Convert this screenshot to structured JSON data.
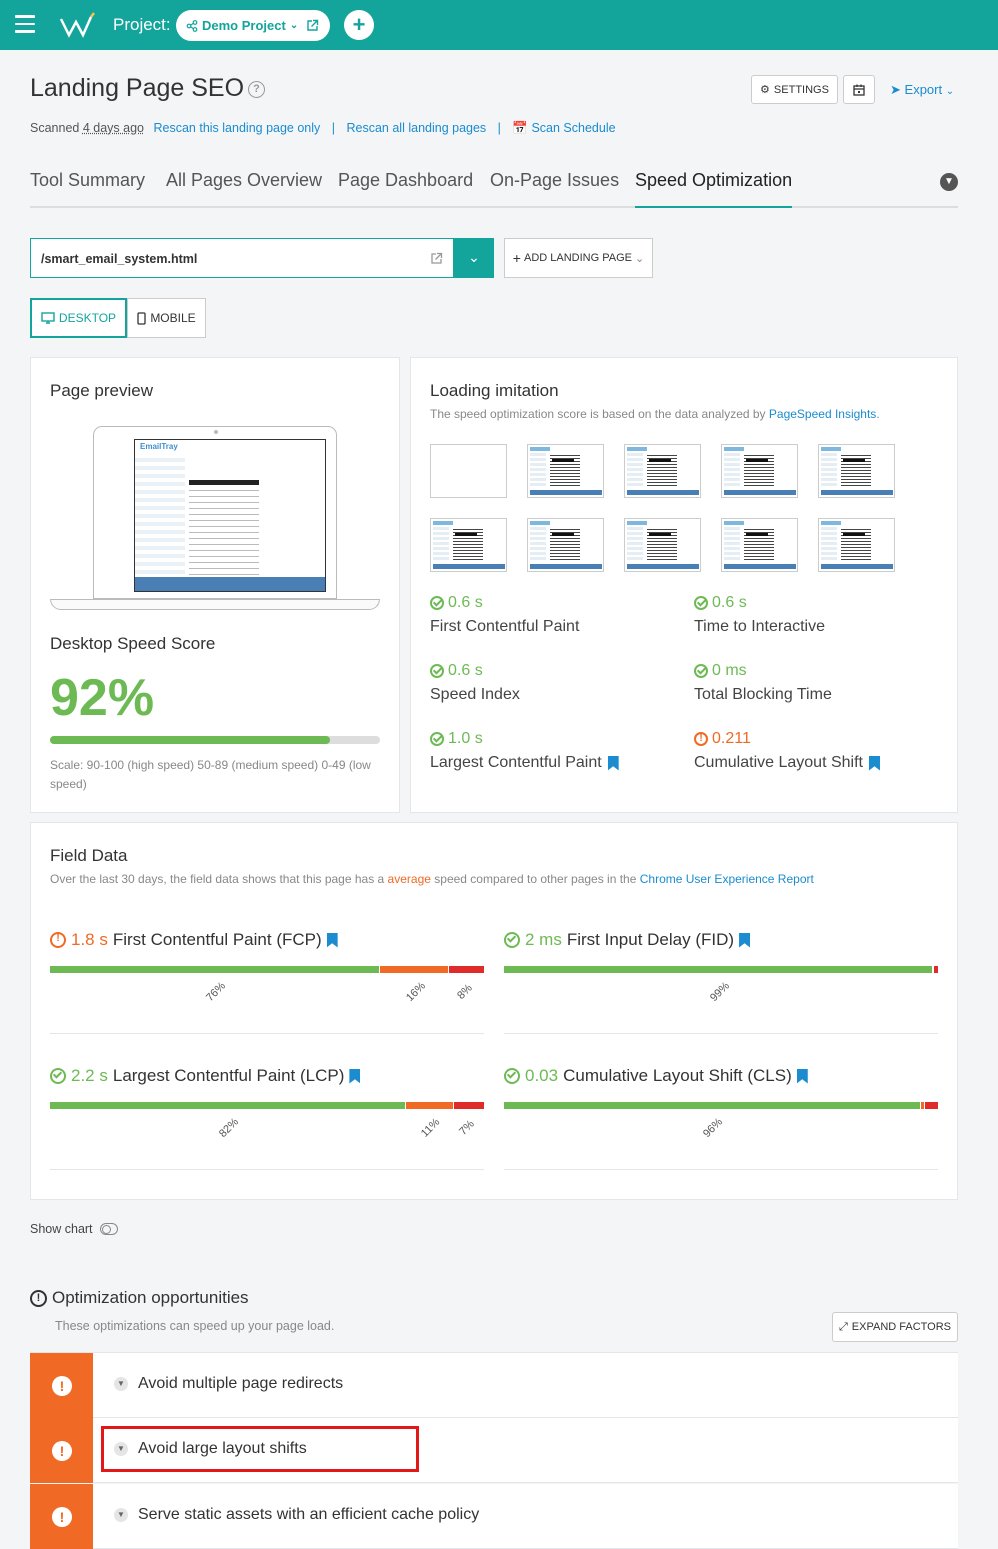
{
  "topbar": {
    "project_label": "Project:",
    "project_name": "Demo Project",
    "add_label": "+"
  },
  "header": {
    "title": "Landing Page SEO",
    "settings_label": "SETTINGS",
    "export_label": "Export",
    "scanned_prefix": "Scanned",
    "scanned_ago": "4 days ago",
    "rescan_page": "Rescan this landing page only",
    "rescan_all": "Rescan all landing pages",
    "scan_schedule": "Scan Schedule",
    "separator": "|"
  },
  "tabs": [
    "Tool Summary",
    "All Pages Overview",
    "Page Dashboard",
    "On-Page Issues",
    "Speed Optimization"
  ],
  "url_selector": {
    "value": "/smart_email_system.html",
    "add_label": "ADD LANDING PAGE"
  },
  "device": {
    "desktop": "DESKTOP",
    "mobile": "MOBILE"
  },
  "preview": {
    "title": "Page preview",
    "score_title": "Desktop Speed Score",
    "score": "92%",
    "score_value": 0.92,
    "scale_text": "Scale: 90-100 (high speed) 50-89 (medium speed) 0-49 (low speed)",
    "mini_brand": "EmailTray"
  },
  "loading": {
    "title": "Loading imitation",
    "desc_prefix": "The speed optimization score is based on the data analyzed by",
    "desc_link": "PageSpeed Insights",
    "desc_suffix": ".",
    "metrics": [
      {
        "value": "0.6 s",
        "label": "First Contentful Paint",
        "status": "ok",
        "bookmark": false
      },
      {
        "value": "0.6 s",
        "label": "Time to Interactive",
        "status": "ok",
        "bookmark": false
      },
      {
        "value": "0.6 s",
        "label": "Speed Index",
        "status": "ok",
        "bookmark": false
      },
      {
        "value": "0 ms",
        "label": "Total Blocking Time",
        "status": "ok",
        "bookmark": false
      },
      {
        "value": "1.0 s",
        "label": "Largest Contentful Paint",
        "status": "ok",
        "bookmark": true
      },
      {
        "value": "0.211",
        "label": "Cumulative Layout Shift",
        "status": "warn",
        "bookmark": true
      }
    ]
  },
  "field": {
    "title": "Field Data",
    "desc_prefix": "Over the last 30 days, the field data shows that this page has a",
    "desc_average": "average",
    "desc_middle": "speed compared to other pages in the",
    "desc_link": "Chrome User Experience Report",
    "metrics": [
      {
        "value": "1.8 s",
        "label": "First Contentful Paint (FCP)",
        "status": "warn",
        "split": [
          76,
          16,
          8
        ],
        "labels": [
          "76%",
          "16%",
          "8%"
        ]
      },
      {
        "value": "2 ms",
        "label": "First Input Delay (FID)",
        "status": "ok",
        "split": [
          99,
          0,
          1
        ],
        "labels": [
          "99%"
        ]
      },
      {
        "value": "2.2 s",
        "label": "Largest Contentful Paint (LCP)",
        "status": "ok",
        "split": [
          82,
          11,
          7
        ],
        "labels": [
          "82%",
          "11%",
          "7%"
        ]
      },
      {
        "value": "0.03",
        "label": "Cumulative Layout Shift (CLS)",
        "status": "ok",
        "split": [
          96,
          1,
          3
        ],
        "labels": [
          "96%"
        ]
      }
    ]
  },
  "show_chart": "Show chart",
  "opportunities": {
    "title": "Optimization opportunities",
    "desc": "These optimizations can speed up your page load.",
    "expand_label": "EXPAND FACTORS",
    "items": [
      "Avoid multiple page redirects",
      "Avoid large layout shifts",
      "Serve static assets with an efficient cache policy"
    ]
  },
  "colors": {
    "brand": "#13a59b",
    "good": "#6dba54",
    "average": "#f06a25",
    "poor": "#e02b2b",
    "link": "#1a8ccf"
  }
}
